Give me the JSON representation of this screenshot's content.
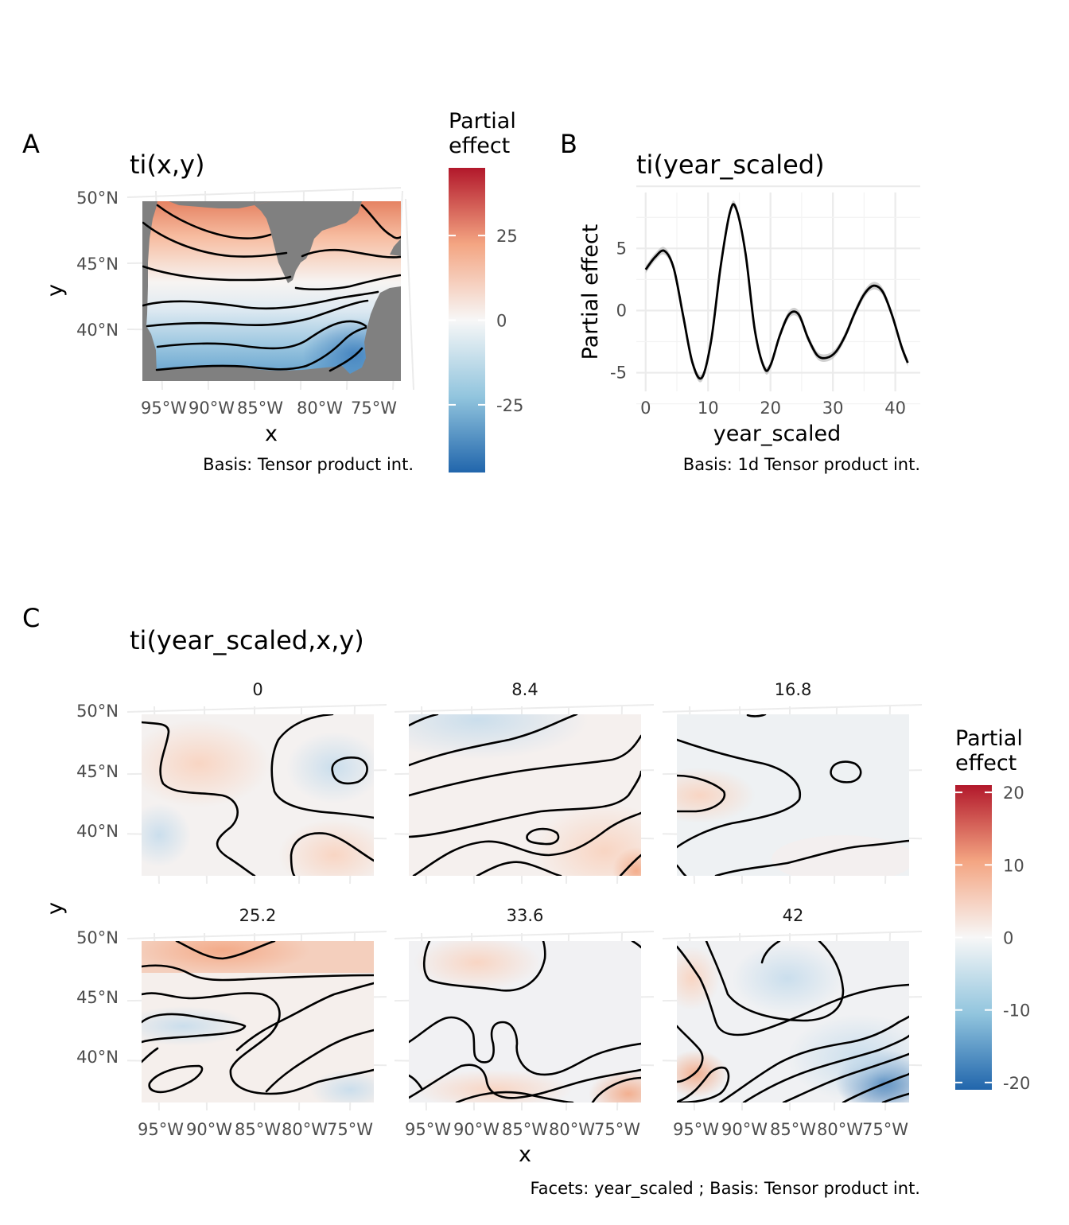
{
  "figure": {
    "panel_letters": [
      "A",
      "B",
      "C"
    ]
  },
  "chart_data": [
    {
      "panel": "A",
      "type": "heatmap",
      "title": "ti(x,y)",
      "xlabel": "x",
      "ylabel": "y",
      "x_ticks": [
        "95°W",
        "90°W",
        "85°W",
        "80°W",
        "75°W"
      ],
      "x_tick_values": [
        -95,
        -90,
        -85,
        -80,
        -75
      ],
      "y_ticks": [
        "50°N",
        "45°N",
        "40°N"
      ],
      "y_tick_values": [
        50,
        45,
        40
      ],
      "caption": "Basis: Tensor product int.",
      "legend": {
        "title": [
          "Partial",
          "effect"
        ],
        "ticks": [
          "25",
          "0",
          "-25"
        ],
        "tick_values": [
          25,
          0,
          -25
        ],
        "range": [
          -45,
          45
        ]
      },
      "colors": {
        "low": "#2166ac",
        "mid": "#f7f7f7",
        "high": "#b2182b",
        "mask": "#808080"
      }
    },
    {
      "panel": "B",
      "type": "line",
      "title": "ti(year_scaled)",
      "xlabel": "year_scaled",
      "ylabel": "Partial effect",
      "x_ticks": [
        "0",
        "10",
        "20",
        "30",
        "40"
      ],
      "x_tick_values": [
        0,
        10,
        20,
        30,
        40
      ],
      "y_ticks": [
        "5",
        "0",
        "-5"
      ],
      "y_tick_values": [
        5,
        0,
        -5
      ],
      "xlim": [
        -1.5,
        44
      ],
      "ylim": [
        -6.5,
        9.5
      ],
      "caption": "Basis: 1d Tensor product int.",
      "x": [
        0,
        1.5,
        3,
        4.5,
        6,
        7.5,
        9,
        10.5,
        12,
        13.5,
        14.5,
        16,
        17.5,
        19,
        20,
        21.5,
        23,
        24.5,
        26,
        27.5,
        29,
        30.5,
        32,
        33.5,
        35,
        36.5,
        38,
        39.5,
        41,
        42
      ],
      "y": [
        3.3,
        4.3,
        4.8,
        3.4,
        -0.4,
        -4.2,
        -5.4,
        -2.4,
        3.5,
        7.9,
        8.2,
        4.6,
        -1.6,
        -4.6,
        -4.4,
        -2.0,
        -0.3,
        -0.3,
        -2.2,
        -3.6,
        -3.8,
        -3.3,
        -2.0,
        -0.2,
        1.3,
        2.0,
        1.5,
        -0.4,
        -2.9,
        -4.2
      ]
    },
    {
      "panel": "C",
      "type": "heatmap",
      "title": "ti(year_scaled,x,y)",
      "xlabel": "x",
      "ylabel": "y",
      "facets": [
        "0",
        "8.4",
        "16.8",
        "25.2",
        "33.6",
        "42"
      ],
      "x_ticks": [
        "95°W",
        "90°W",
        "85°W",
        "80°W",
        "75°W"
      ],
      "x_tick_values": [
        -95,
        -90,
        -85,
        -80,
        -75
      ],
      "y_ticks": [
        "50°N",
        "45°N",
        "40°N"
      ],
      "y_tick_values": [
        50,
        45,
        40
      ],
      "caption": "Facets: year_scaled ; Basis: Tensor product int.",
      "legend": {
        "title": [
          "Partial",
          "effect"
        ],
        "ticks": [
          "20",
          "10",
          "0",
          "-10",
          "-20"
        ],
        "tick_values": [
          20,
          10,
          0,
          -10,
          -20
        ],
        "range": [
          -21,
          21
        ]
      }
    }
  ]
}
